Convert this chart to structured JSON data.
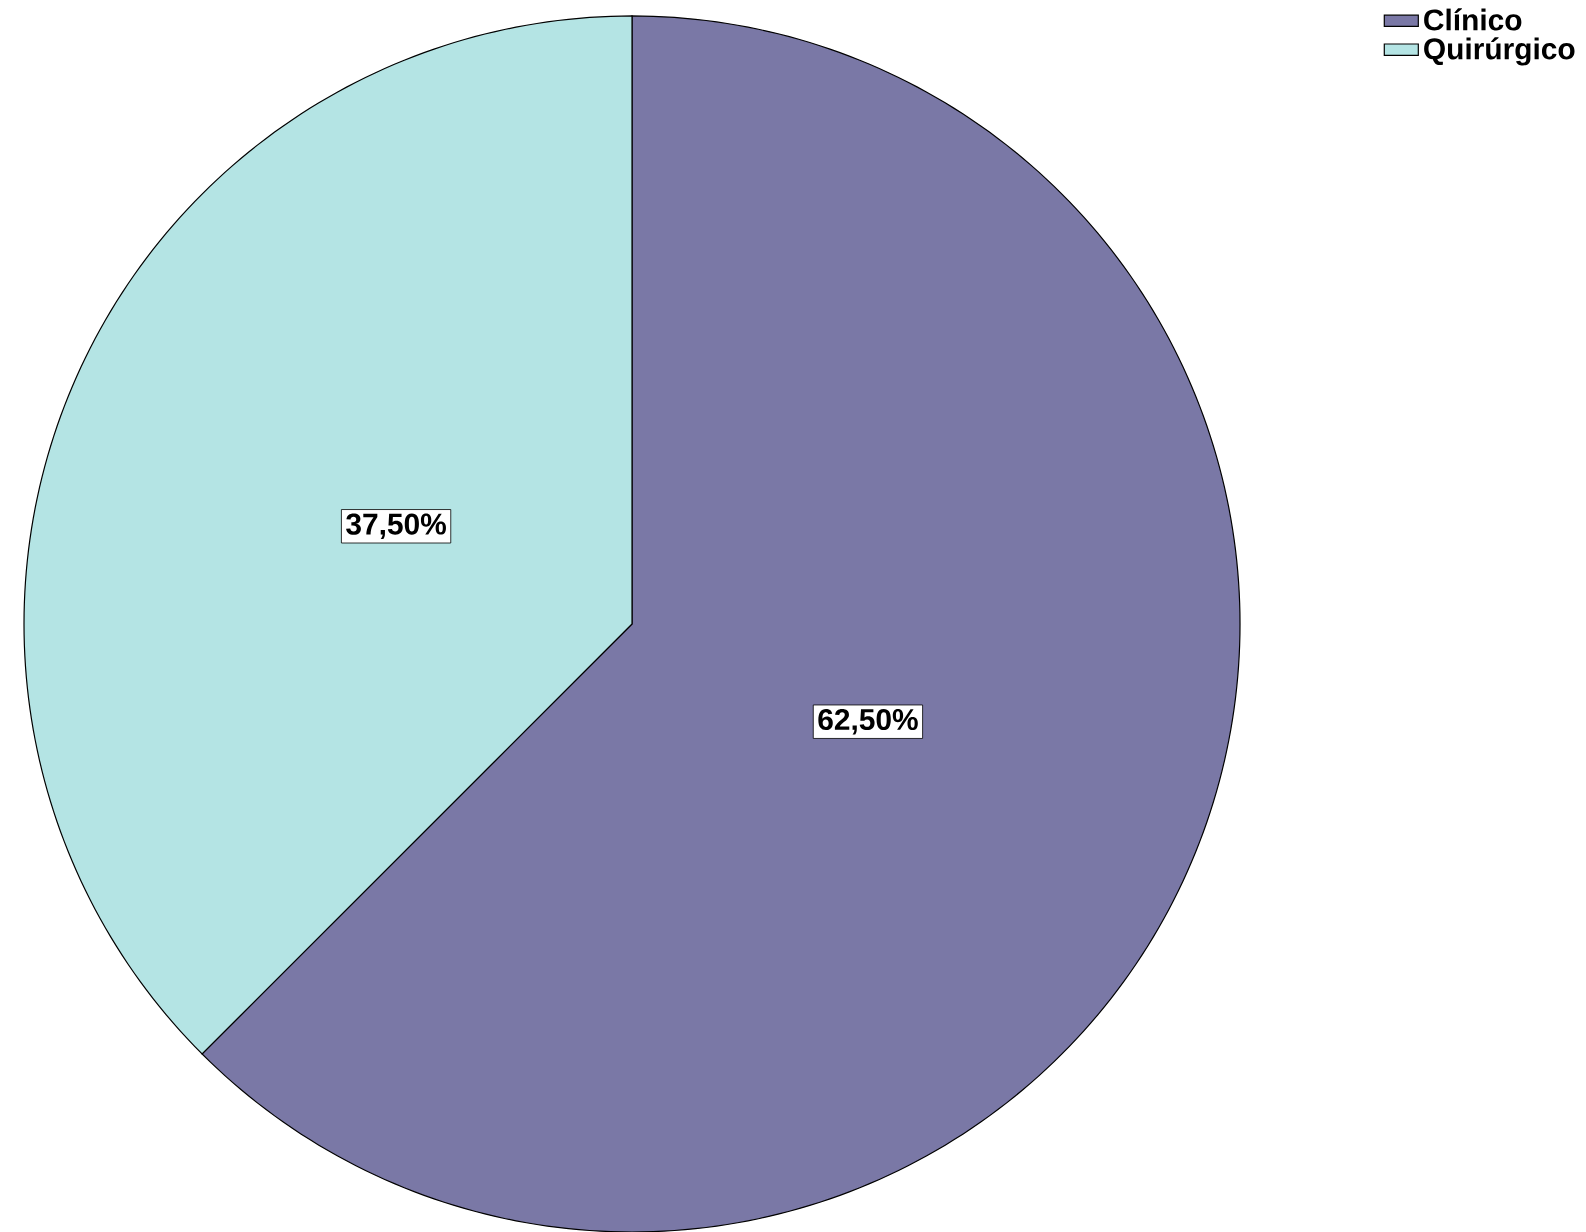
{
  "chart_data": {
    "type": "pie",
    "categories": [
      "Clínico",
      "Quirúrgico"
    ],
    "values": [
      62.5,
      37.5
    ],
    "colors": [
      "#7a78a6",
      "#b4e4e4"
    ],
    "value_labels": [
      "62,50%",
      "37,50%"
    ],
    "legend": "top right"
  }
}
